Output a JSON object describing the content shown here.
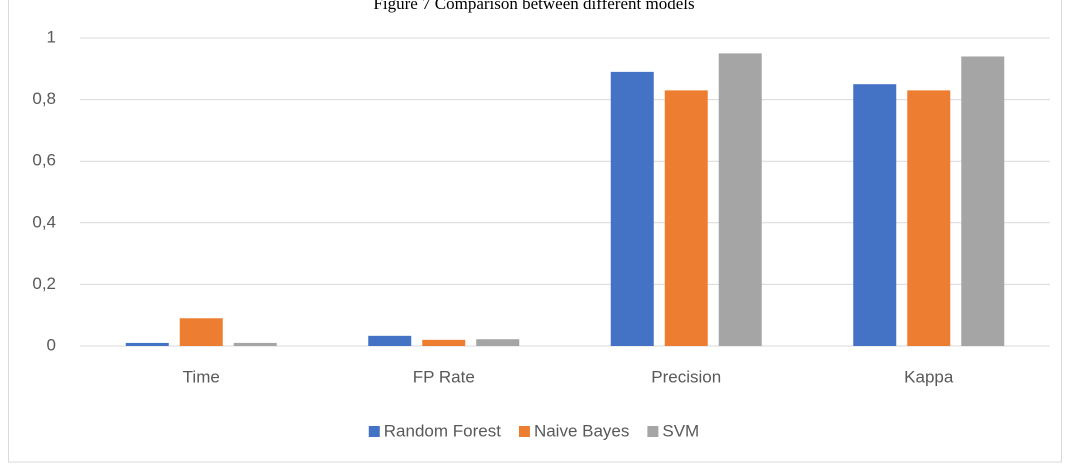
{
  "chart_data": {
    "type": "bar",
    "title": "Figure 7 Comparison between different models",
    "categories": [
      "Time",
      "FP Rate",
      "Precision",
      "Kappa"
    ],
    "series": [
      {
        "name": "Random Forest",
        "color": "#4472c4",
        "values": [
          0.01,
          0.033,
          0.89,
          0.85
        ]
      },
      {
        "name": "Naive Bayes",
        "color": "#ed7d31",
        "values": [
          0.09,
          0.02,
          0.83,
          0.83
        ]
      },
      {
        "name": "SVM",
        "color": "#a5a5a5",
        "values": [
          0.01,
          0.022,
          0.95,
          0.94
        ]
      }
    ],
    "ylim": [
      0,
      1
    ],
    "yticks": [
      0,
      {
        "value": 0.2,
        "label": "0,2"
      },
      {
        "value": 0.4,
        "label": "0,4"
      },
      {
        "value": 0.6,
        "label": "0,6"
      },
      {
        "value": 0.8,
        "label": "0,8"
      },
      1
    ],
    "grid": true,
    "legend": "bottom"
  }
}
